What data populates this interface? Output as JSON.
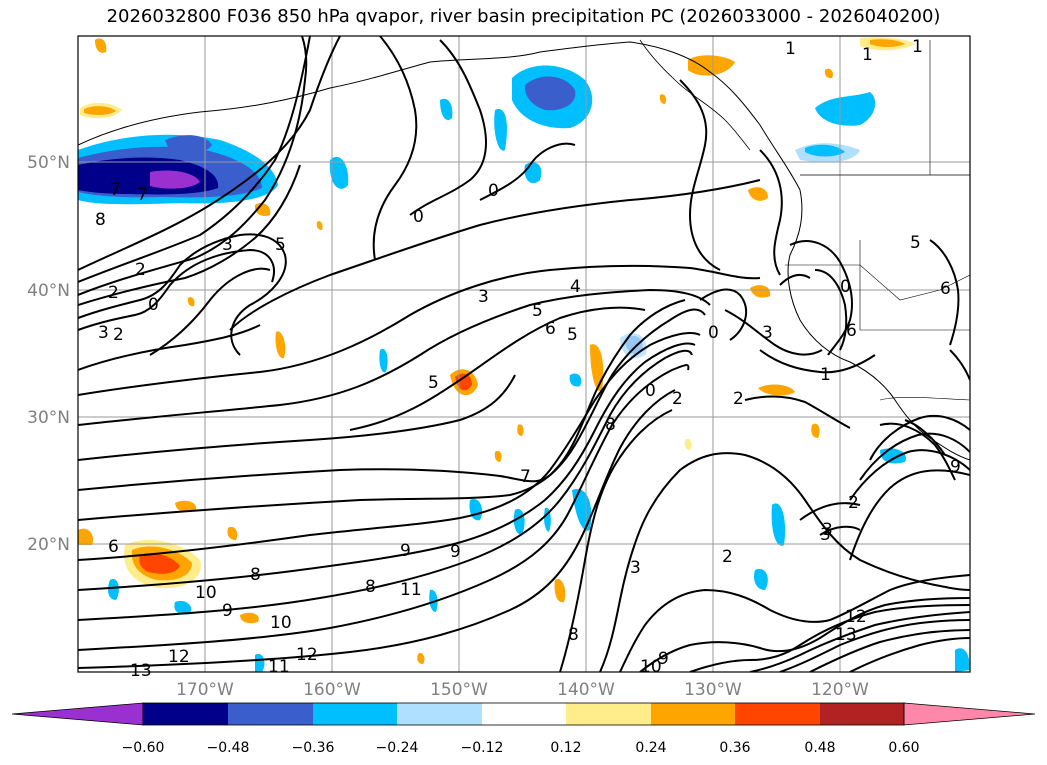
{
  "title": "2026032800 F036 850 hPa qvapor, river basin precipitation PC (2026033000 - 2026040200)",
  "lat_ticks": [
    "50°N",
    "40°N",
    "30°N",
    "20°N"
  ],
  "lon_ticks": [
    "170°W",
    "160°W",
    "150°W",
    "140°W",
    "130°W",
    "120°W"
  ],
  "colorbar": {
    "colors": [
      "#9b30d0",
      "#00008b",
      "#3a5fcd",
      "#00bfff",
      "#b0e0ff",
      "#ffffff",
      "#ffec8b",
      "#ffa500",
      "#ff4500",
      "#b22222",
      "#ff88aa"
    ],
    "labels": [
      "−0.60",
      "−0.48",
      "−0.36",
      "−0.24",
      "−0.12",
      "0.12",
      "0.24",
      "0.36",
      "0.48",
      "0.60"
    ]
  },
  "contour_labels": [
    "1",
    "1",
    "1",
    "0",
    "0",
    "3",
    "5",
    "2",
    "2",
    "0",
    "3",
    "2",
    "8",
    "7",
    "3",
    "4",
    "5",
    "6",
    "5",
    "5",
    "8",
    "7",
    "0",
    "2",
    "0",
    "0",
    "3",
    "1",
    "2",
    "5",
    "6",
    "6",
    "3",
    "7",
    "9",
    "9",
    "8",
    "11",
    "10",
    "9",
    "10",
    "12",
    "13",
    "11",
    "12",
    "6",
    "8",
    "10",
    "9",
    "3",
    "2",
    "3",
    "12",
    "13",
    "2",
    "9",
    "8"
  ]
}
